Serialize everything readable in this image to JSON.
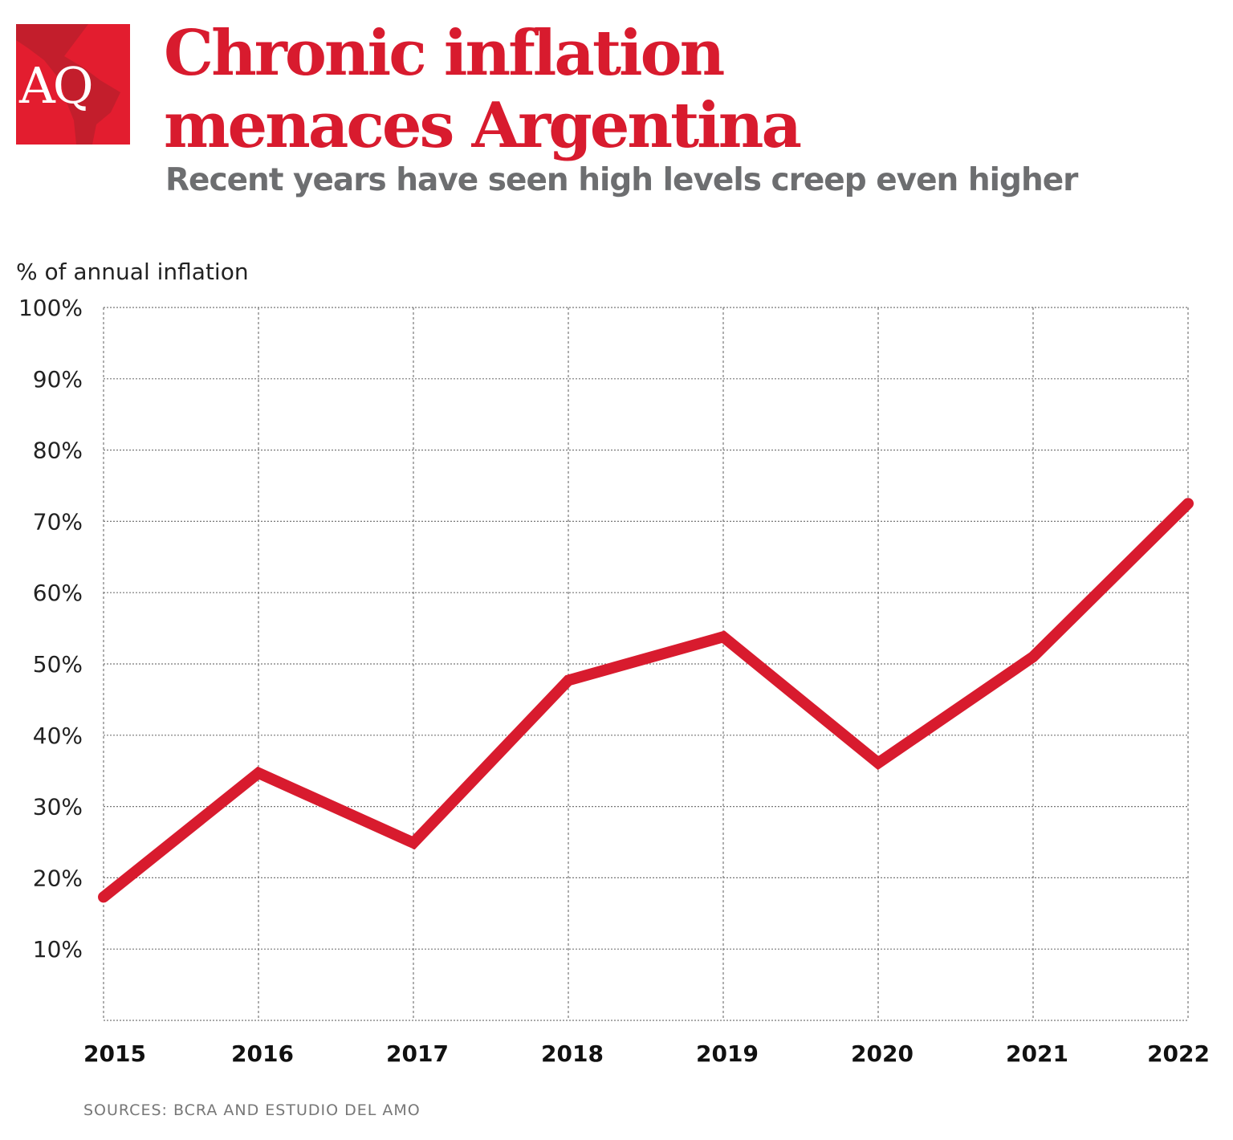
{
  "logo": {
    "text": "AQ",
    "color": "#e31d2f"
  },
  "title_line1": "Chronic inflation",
  "title_line2": "menaces Argentina",
  "subtitle": "Recent years have seen high levels creep even higher",
  "source": "SOURCES: BCRA AND ESTUDIO DEL AMO",
  "chart_data": {
    "type": "line",
    "ylabel": "% of annual inflation",
    "xlabel": "",
    "categories": [
      "2015",
      "2016",
      "2017",
      "2018",
      "2019",
      "2020",
      "2021",
      "2022"
    ],
    "values": [
      17.3,
      34.7,
      24.9,
      47.7,
      53.8,
      36.1,
      51.0,
      72.5
    ],
    "ylim": [
      0,
      100
    ],
    "yticks": [
      "10%",
      "20%",
      "30%",
      "40%",
      "50%",
      "60%",
      "70%",
      "80%",
      "90%",
      "100%"
    ],
    "ytick_values": [
      10,
      20,
      30,
      40,
      50,
      60,
      70,
      80,
      90,
      100
    ],
    "grid": true,
    "line_color": "#d81b2e"
  }
}
